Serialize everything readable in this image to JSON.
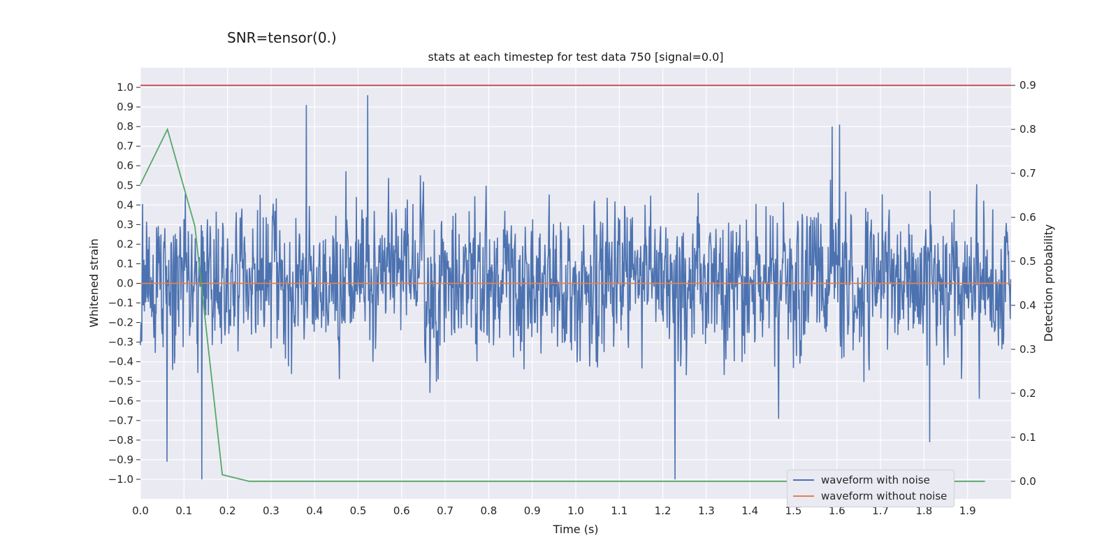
{
  "suptitle": "SNR=tensor(0.)",
  "colors": {
    "background": "#eaeaf2",
    "grid": "#ffffff",
    "noisy": "#4c72b0",
    "clean": "#dd8452",
    "probability": "#55a868",
    "threshold": "#c44e52"
  },
  "chart_data": {
    "type": "line",
    "title": "stats at each timestep for test data 750 [signal=0.0]",
    "xlabel": "Time (s)",
    "ylabel": "Whitened strain",
    "y2label": "Detection probability",
    "xlim": [
      0.0,
      2.0
    ],
    "ylim": [
      -1.1,
      1.1
    ],
    "y2lim": [
      -0.04,
      0.94
    ],
    "x_ticks": [
      "0.0",
      "0.1",
      "0.2",
      "0.3",
      "0.4",
      "0.5",
      "0.6",
      "0.7",
      "0.8",
      "0.9",
      "1.0",
      "1.1",
      "1.2",
      "1.3",
      "1.4",
      "1.5",
      "1.6",
      "1.7",
      "1.8",
      "1.9"
    ],
    "y_ticks": [
      "1.0",
      "0.9",
      "0.8",
      "0.7",
      "0.6",
      "0.5",
      "0.4",
      "0.3",
      "0.2",
      "0.1",
      "0.0",
      "−0.1",
      "−0.2",
      "−0.3",
      "−0.4",
      "−0.5",
      "−0.6",
      "−0.7",
      "−0.8",
      "−0.9",
      "−1.0"
    ],
    "y2_ticks": [
      "0.9",
      "0.8",
      "0.7",
      "0.6",
      "0.5",
      "0.4",
      "0.3",
      "0.2",
      "0.1",
      "0.0"
    ],
    "grid": true,
    "legend_position": "lower-right",
    "series": [
      {
        "name": "waveform with noise",
        "axis": "left",
        "description": "noisy whitened strain, range approx -1.0 to 0.96",
        "peaks": [
          {
            "x": 0.381,
            "y": 0.91
          },
          {
            "x": 0.522,
            "y": 0.96
          },
          {
            "x": 0.141,
            "y": -1.0
          },
          {
            "x": 1.228,
            "y": -1.0
          },
          {
            "x": 1.589,
            "y": 0.8
          },
          {
            "x": 1.606,
            "y": 0.81
          },
          {
            "x": 0.061,
            "y": -0.91
          },
          {
            "x": 1.813,
            "y": -0.81
          }
        ]
      },
      {
        "name": "waveform without noise",
        "axis": "left",
        "x": [
          0.0,
          2.0
        ],
        "y": [
          0.0,
          0.0
        ]
      },
      {
        "name": "detection probability",
        "axis": "right",
        "x": [
          0.0,
          0.062,
          0.125,
          0.188,
          0.25,
          1.94
        ],
        "y": [
          0.675,
          0.8,
          0.58,
          0.015,
          0.0,
          0.0
        ]
      },
      {
        "name": "threshold",
        "axis": "right",
        "x": [
          0.0,
          2.0
        ],
        "y": [
          0.9,
          0.9
        ]
      }
    ],
    "legend": [
      "waveform with noise",
      "waveform without noise"
    ]
  }
}
